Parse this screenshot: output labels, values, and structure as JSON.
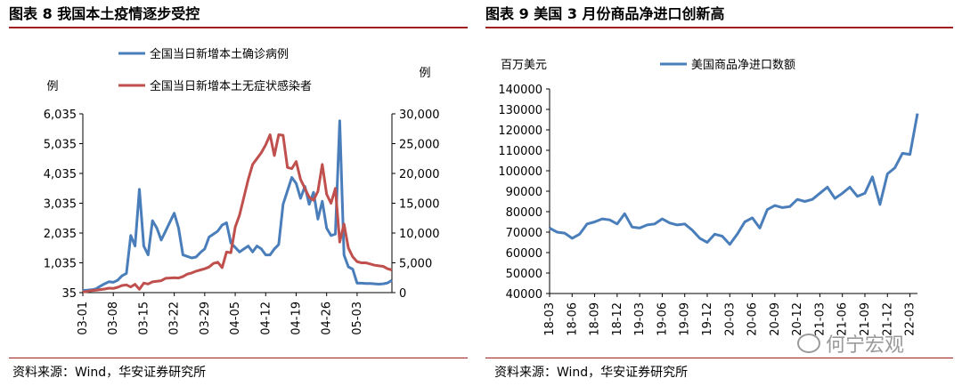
{
  "left": {
    "title": "图表 8  我国本土疫情逐步受控",
    "source": "资料来源：Wind，华安证券研究所"
  },
  "right": {
    "title": "图表 9 美国 3 月份商品净进口创新高",
    "source": "资料来源：Wind，华安证券研究所"
  },
  "watermark": "何宁宏观",
  "chart_data": [
    {
      "type": "line",
      "title": "图表 8  我国本土疫情逐步受控",
      "ylabel": "例",
      "y2label": "例",
      "ylim": [
        35,
        6035
      ],
      "y2lim": [
        0,
        30000
      ],
      "y_ticks": [
        "6,035",
        "5,035",
        "4,035",
        "3,035",
        "2,035",
        "1,035",
        "35"
      ],
      "y2_ticks": [
        "30,000",
        "25,000",
        "20,000",
        "15,000",
        "10,000",
        "5,000",
        "0"
      ],
      "x_ticks": [
        "03-01",
        "03-08",
        "03-15",
        "03-22",
        "03-29",
        "04-05",
        "04-12",
        "04-19",
        "04-26",
        "05-03"
      ],
      "legend_position": "top",
      "series": [
        {
          "name": "全国当日新增本土确诊病例",
          "axis": "left",
          "color": "#4a7ebb",
          "values": [
            110,
            115,
            130,
            160,
            250,
            330,
            400,
            380,
            450,
            600,
            680,
            1950,
            1600,
            3500,
            1600,
            1300,
            2450,
            2200,
            1800,
            2100,
            2400,
            2700,
            2200,
            1300,
            1250,
            1200,
            1230,
            1380,
            1500,
            1900,
            2000,
            2100,
            2300,
            2380,
            1700,
            1550,
            1400,
            1500,
            1600,
            1400,
            1600,
            1500,
            1300,
            1300,
            1500,
            1650,
            3000,
            3450,
            3900,
            3700,
            3200,
            3600,
            3000,
            3400,
            2500,
            3100,
            2200,
            1950,
            2000,
            5800,
            1300,
            900,
            820,
            350,
            350,
            340,
            340,
            330,
            320,
            330,
            360,
            450
          ]
        },
        {
          "name": "全国当日新增本土无症状感染者",
          "axis": "right",
          "color": "#c0504d",
          "values": [
            100,
            200,
            350,
            400,
            500,
            600,
            750,
            700,
            900,
            1200,
            1300,
            950,
            1400,
            550,
            1600,
            1450,
            1800,
            1900,
            2000,
            2400,
            2450,
            2500,
            2450,
            2700,
            3100,
            3300,
            3600,
            3800,
            4000,
            4300,
            4900,
            5100,
            4200,
            6800,
            6700,
            11000,
            13000,
            16000,
            19000,
            21500,
            22500,
            23500,
            24800,
            26500,
            23000,
            26500,
            26400,
            21000,
            20800,
            22000,
            19000,
            17500,
            16000,
            15500,
            17000,
            21500,
            16500,
            15000,
            17500,
            8500,
            11500,
            7500,
            6000,
            5200,
            5000,
            5000,
            4800,
            4600,
            4500,
            4400,
            4000,
            3800
          ]
        }
      ]
    },
    {
      "type": "line",
      "title": "图表 9 美国 3 月份商品净进口创新高",
      "ylabel": "百万美元",
      "ylim": [
        40000,
        140000
      ],
      "y_ticks": [
        "140000",
        "130000",
        "120000",
        "110000",
        "100000",
        "90000",
        "80000",
        "70000",
        "60000",
        "50000",
        "40000"
      ],
      "x_ticks": [
        "18-03",
        "18-06",
        "18-09",
        "18-12",
        "19-03",
        "19-06",
        "19-09",
        "19-12",
        "20-03",
        "20-06",
        "20-09",
        "20-12",
        "21-03",
        "21-06",
        "21-09",
        "21-12",
        "22-03"
      ],
      "legend_position": "top",
      "series": [
        {
          "name": "美国商品净进口数额",
          "color": "#4a7ebb",
          "values": [
            72000,
            70000,
            69500,
            67000,
            69000,
            74000,
            75000,
            76500,
            76000,
            74000,
            79000,
            72500,
            72000,
            73500,
            74000,
            76500,
            74500,
            73500,
            74000,
            71000,
            67000,
            65000,
            69000,
            68000,
            64000,
            69000,
            75000,
            77000,
            72000,
            81000,
            83000,
            82000,
            82500,
            86000,
            85000,
            86000,
            89000,
            92000,
            86500,
            89000,
            92000,
            87500,
            89000,
            97000,
            83500,
            98500,
            101500,
            108500,
            108000,
            128000
          ]
        }
      ]
    }
  ]
}
